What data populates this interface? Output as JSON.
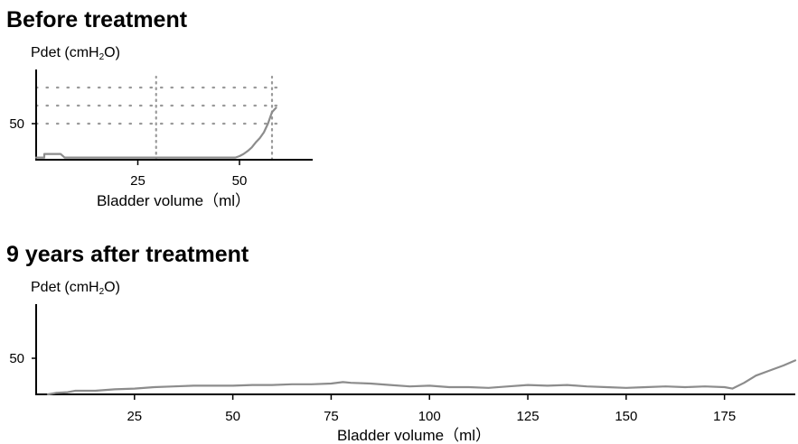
{
  "chart_data": [
    {
      "type": "line",
      "title": "Before treatment",
      "ylabel": {
        "prefix": "Pdet (cmH",
        "sub": "2",
        "suffix": "O)"
      },
      "xlabel": "Bladder volume（ml）",
      "xticks": [
        25,
        50
      ],
      "yticks": [
        50
      ],
      "xlim": [
        0,
        68
      ],
      "ylim": [
        0,
        125
      ],
      "grid": "dotted",
      "series": [
        {
          "color": "#8c8c8c",
          "x": [
            0,
            1,
            2,
            2,
            3,
            4,
            5,
            6,
            7,
            8,
            10,
            15,
            20,
            25,
            30,
            35,
            40,
            45,
            49,
            50,
            51,
            52,
            53,
            54,
            55,
            56,
            57,
            58,
            59
          ],
          "y": [
            3,
            3,
            3,
            8,
            8,
            8,
            8,
            8,
            3,
            3,
            3,
            3,
            3,
            3,
            3,
            3,
            3,
            3,
            3,
            5,
            8,
            12,
            17,
            24,
            30,
            38,
            50,
            66,
            72
          ]
        }
      ]
    },
    {
      "type": "line",
      "title": "9 years after treatment",
      "ylabel": {
        "prefix": "Pdet (cmH",
        "sub": "2",
        "suffix": "O)"
      },
      "xlabel": "Bladder volume（ml）",
      "xticks": [
        25,
        50,
        75,
        100,
        125,
        150,
        175
      ],
      "yticks": [
        50
      ],
      "xlim": [
        0,
        193
      ],
      "ylim": [
        0,
        125
      ],
      "grid": "none",
      "series": [
        {
          "color": "#8c8c8c",
          "x": [
            3,
            5,
            8,
            10,
            15,
            20,
            25,
            30,
            35,
            40,
            45,
            50,
            55,
            60,
            65,
            70,
            75,
            78,
            80,
            85,
            90,
            95,
            100,
            105,
            110,
            115,
            120,
            125,
            130,
            135,
            140,
            145,
            150,
            155,
            160,
            165,
            170,
            175,
            177,
            180,
            183,
            186,
            190,
            193
          ],
          "y": [
            0,
            2,
            3,
            5,
            5,
            7,
            8,
            10,
            11,
            12,
            12,
            12,
            13,
            13,
            14,
            14,
            15,
            17,
            16,
            15,
            13,
            11,
            12,
            10,
            10,
            9,
            11,
            13,
            12,
            13,
            11,
            10,
            9,
            10,
            11,
            10,
            11,
            10,
            8,
            16,
            26,
            32,
            40,
            47
          ]
        }
      ]
    }
  ]
}
